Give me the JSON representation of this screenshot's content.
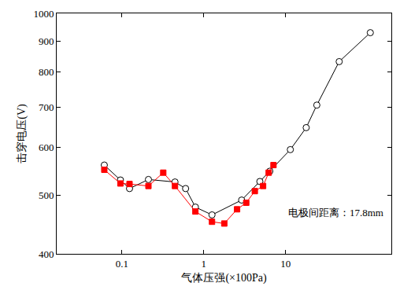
{
  "chart_data": {
    "type": "line",
    "x_label": "气体压强(×100Pa)",
    "y_label": "击穿电压(V)",
    "annotation": "电极间距离：17.8mm",
    "log": true,
    "grid": false,
    "xlim": [
      0.016,
      195
    ],
    "xticks": [
      0.1,
      1,
      10
    ],
    "ylim": [
      400,
      1000
    ],
    "yticks": [
      400,
      500,
      600,
      700,
      800,
      900,
      1000
    ],
    "series": [
      {
        "color": "#000000",
        "marker": "triangle-open",
        "line_style": "solid",
        "x": [
          0.061,
          0.096,
          0.124,
          0.211,
          0.445,
          0.6,
          0.79,
          1.26,
          2.9,
          4.84,
          6.4,
          11.4,
          17.8,
          24,
          45,
          108
        ],
        "values": [
          561,
          530,
          513,
          531,
          526,
          513,
          478,
          464,
          491,
          527,
          548,
          595,
          647,
          705,
          832,
          929
        ]
      },
      {
        "color": "#ff0000",
        "marker": "square",
        "line_style": "solid",
        "x": [
          0.061,
          0.096,
          0.124,
          0.211,
          0.32,
          0.445,
          0.79,
          1.26,
          1.78,
          2.55,
          3.3,
          4.2,
          5.3,
          6.2,
          7.1
        ],
        "values": [
          551,
          523,
          522,
          518,
          545,
          518,
          470,
          452,
          449,
          474,
          486,
          508,
          518,
          545,
          561
        ]
      }
    ]
  }
}
